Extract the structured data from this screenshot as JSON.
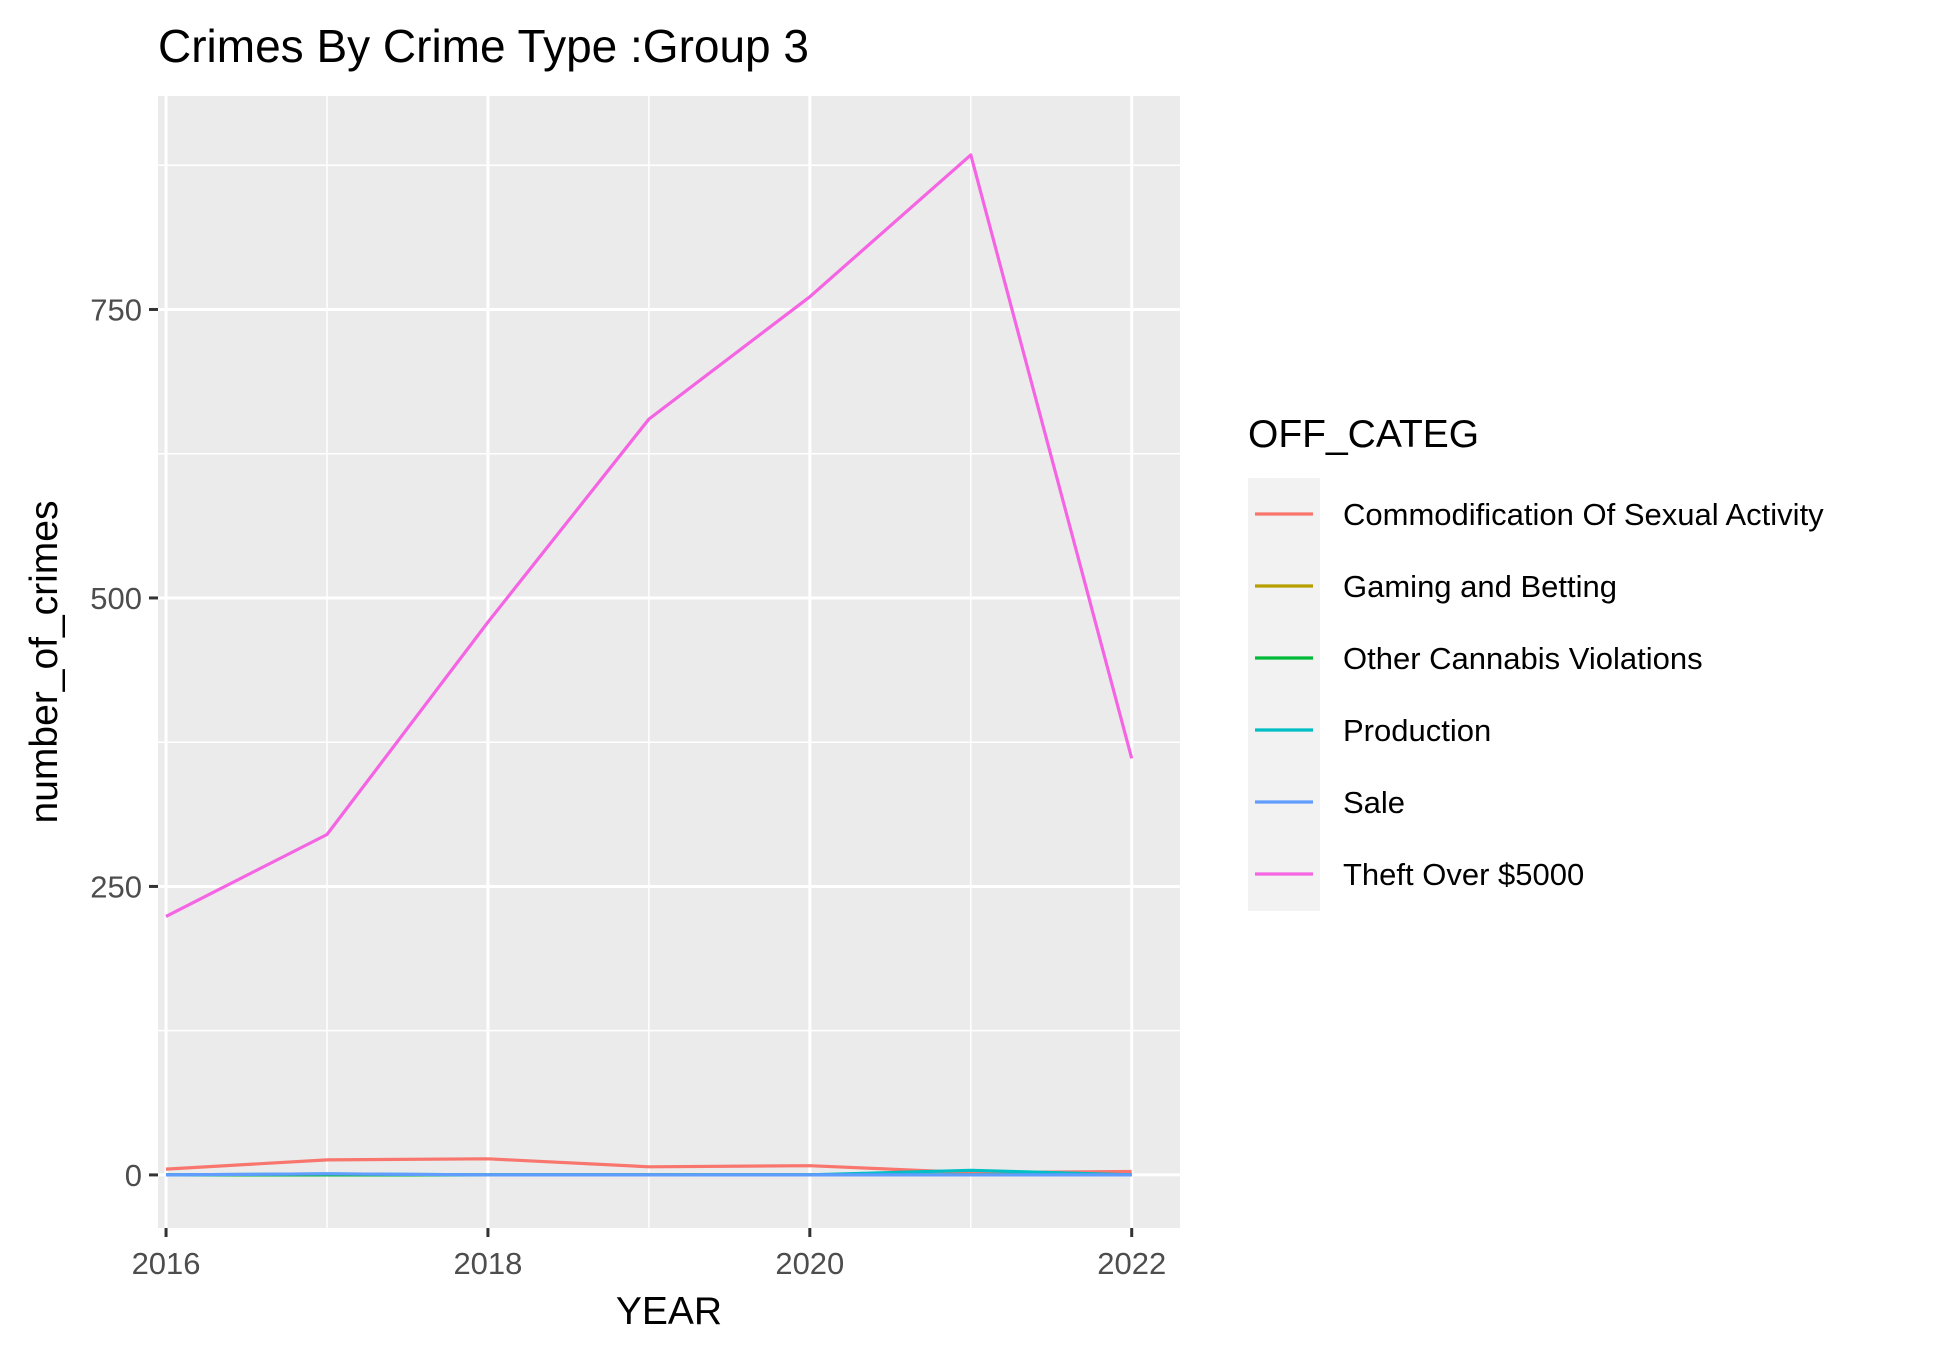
{
  "chart_data": {
    "type": "line",
    "title": "Crimes By Crime Type :Group 3",
    "xlabel": "YEAR",
    "ylabel": "number_of_crimes",
    "x": [
      2016,
      2017,
      2018,
      2019,
      2020,
      2021,
      2022
    ],
    "xticks": [
      2016,
      2018,
      2020,
      2022
    ],
    "yticks": [
      0,
      250,
      500,
      750
    ],
    "xlim": [
      2015.95,
      2022.3
    ],
    "ylim": [
      -46,
      935
    ],
    "grid": true,
    "legend": {
      "title": "OFF_CATEG",
      "position": "right"
    },
    "series": [
      {
        "name": "Commodification Of Sexual Activity",
        "color": "#F8766D",
        "values": [
          5,
          13,
          14,
          7,
          8,
          2,
          3
        ]
      },
      {
        "name": "Gaming and Betting",
        "color": "#B79F00",
        "values": [
          0,
          0,
          0,
          0,
          0,
          0,
          0
        ]
      },
      {
        "name": "Other Cannabis Violations",
        "color": "#00BA38",
        "values": [
          0,
          0,
          0,
          0,
          0,
          0,
          0
        ]
      },
      {
        "name": "Production",
        "color": "#00BFC4",
        "values": [
          0,
          1,
          0,
          0,
          0,
          4,
          0
        ]
      },
      {
        "name": "Sale",
        "color": "#619CFF",
        "values": [
          0,
          1,
          0,
          0,
          0,
          0,
          0
        ]
      },
      {
        "name": "Theft Over $5000",
        "color": "#F564E3",
        "values": [
          224,
          295,
          479,
          655,
          761,
          884,
          361
        ]
      }
    ]
  }
}
